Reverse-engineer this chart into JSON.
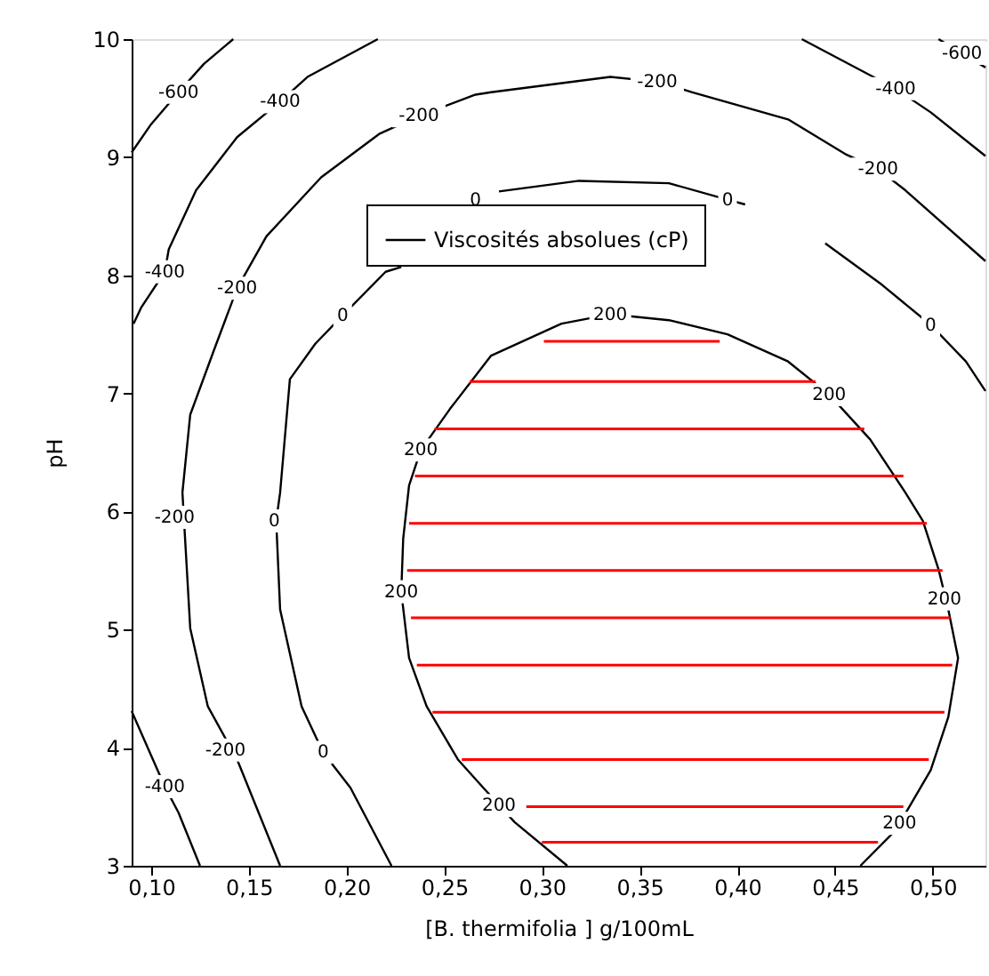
{
  "chart_data": {
    "type": "line",
    "xlabel": "[B. thermifolia ] g/100mL",
    "ylabel": "pH",
    "xlim": [
      0.09,
      0.527
    ],
    "ylim": [
      3,
      10
    ],
    "xticks": [
      {
        "value": 0.1,
        "label": "0,10"
      },
      {
        "value": 0.15,
        "label": "0,15"
      },
      {
        "value": 0.2,
        "label": "0,20"
      },
      {
        "value": 0.25,
        "label": "0,25"
      },
      {
        "value": 0.3,
        "label": "0,30"
      },
      {
        "value": 0.35,
        "label": "0,35"
      },
      {
        "value": 0.4,
        "label": "0,40"
      },
      {
        "value": 0.45,
        "label": "0,45"
      },
      {
        "value": 0.5,
        "label": "0,50"
      }
    ],
    "yticks": [
      3,
      4,
      5,
      6,
      7,
      8,
      9,
      10
    ],
    "grid": false,
    "legend": "top",
    "marker": "none",
    "line_style": "solid",
    "series": [
      {
        "name": "Viscosités absolues (cP)",
        "color": "#000000",
        "x": [
          0.09,
          0.1,
          0.114,
          0.127,
          0.142,
          null,
          0.503,
          0.515,
          0.527,
          null,
          0.216,
          0.18,
          0.166,
          0.144,
          0.123,
          0.109,
          0.107,
          0.095,
          0.091,
          null,
          0.433,
          0.481,
          0.499,
          0.527,
          null,
          0.09,
          0.107,
          0.114,
          0.125,
          null,
          0.166,
          0.144,
          0.129,
          0.12,
          0.116,
          0.12,
          0.132,
          0.144,
          0.159,
          0.187,
          0.217,
          0.237,
          0.266,
          0.274,
          0.335,
          0.359,
          0.377,
          0.426,
          0.456,
          0.472,
          0.486,
          0.527,
          null,
          0.223,
          0.202,
          0.188,
          0.177,
          0.166,
          0.164,
          0.166,
          0.171,
          0.184,
          0.198,
          0.22,
          0.228,
          null,
          0.278,
          0.319,
          0.365,
          0.395,
          0.404,
          null,
          0.445,
          0.474,
          0.499,
          0.517,
          0.527,
          null,
          0.313,
          0.286,
          0.27,
          0.257,
          0.241,
          0.232,
          0.228,
          0.229,
          0.232,
          0.238,
          0.253,
          0.274,
          0.31,
          0.335,
          0.365,
          0.395,
          0.426,
          0.447,
          0.468,
          0.486,
          0.495,
          0.503,
          0.508,
          0.513,
          0.508,
          0.499,
          0.481,
          0.463
        ],
        "values": [
          9.04,
          9.28,
          9.55,
          9.79,
          10,
          null,
          10,
          9.88,
          9.76,
          null,
          10,
          9.68,
          9.47,
          9.17,
          8.72,
          8.22,
          8.03,
          7.73,
          7.59,
          null,
          10,
          9.58,
          9.38,
          9.01,
          null,
          4.31,
          3.67,
          3.45,
          3,
          null,
          3,
          3.9,
          4.35,
          5.01,
          6.16,
          6.82,
          7.36,
          7.89,
          8.33,
          8.83,
          9.2,
          9.35,
          9.53,
          9.55,
          9.68,
          9.64,
          9.55,
          9.32,
          9.02,
          8.9,
          8.72,
          8.12,
          null,
          3,
          3.66,
          3.96,
          4.35,
          5.17,
          5.92,
          6.16,
          7.12,
          7.42,
          7.66,
          8.03,
          8.07,
          null,
          8.71,
          8.8,
          8.78,
          8.64,
          8.6,
          null,
          8.27,
          7.92,
          7.58,
          7.27,
          7.02,
          null,
          3,
          3.37,
          3.66,
          3.9,
          4.35,
          4.76,
          5.32,
          5.77,
          6.22,
          6.52,
          6.87,
          7.32,
          7.59,
          7.67,
          7.62,
          7.5,
          7.27,
          6.99,
          6.61,
          6.16,
          5.92,
          5.51,
          5.17,
          4.76,
          4.26,
          3.81,
          3.3,
          3
        ]
      },
      {
        "color": "#ff0000",
        "x": [
          0.301,
          0.391,
          null,
          0.263,
          0.44,
          null,
          0.245,
          0.465,
          null,
          0.235,
          0.485,
          null,
          0.232,
          0.497,
          null,
          0.231,
          0.505,
          null,
          0.233,
          0.509,
          null,
          0.236,
          0.51,
          null,
          0.244,
          0.506,
          null,
          0.259,
          0.498,
          null,
          0.292,
          0.485,
          null,
          0.3,
          0.472
        ],
        "values": [
          7.44,
          7.44,
          null,
          7.1,
          7.1,
          null,
          6.7,
          6.7,
          null,
          6.3,
          6.3,
          null,
          5.9,
          5.9,
          null,
          5.5,
          5.5,
          null,
          5.1,
          5.1,
          null,
          4.7,
          4.7,
          null,
          4.3,
          4.3,
          null,
          3.9,
          3.9,
          null,
          3.5,
          3.5,
          null,
          3.2,
          3.2
        ]
      }
    ],
    "annotations": [
      {
        "text": "-600",
        "x": 0.114,
        "y": 9.55
      },
      {
        "text": "-600",
        "x": 0.515,
        "y": 9.88
      },
      {
        "text": "-400",
        "x": 0.166,
        "y": 9.47
      },
      {
        "text": "-400",
        "x": 0.481,
        "y": 9.58
      },
      {
        "text": "-400",
        "x": 0.107,
        "y": 8.03
      },
      {
        "text": "-400",
        "x": 0.107,
        "y": 3.67
      },
      {
        "text": "-200",
        "x": 0.112,
        "y": 5.95
      },
      {
        "text": "-200",
        "x": 0.144,
        "y": 7.89
      },
      {
        "text": "-200",
        "x": 0.237,
        "y": 9.35
      },
      {
        "text": "-200",
        "x": 0.359,
        "y": 9.64
      },
      {
        "text": "-200",
        "x": 0.472,
        "y": 8.9
      },
      {
        "text": "-200",
        "x": 0.138,
        "y": 3.98
      },
      {
        "text": "0",
        "x": 0.188,
        "y": 3.96
      },
      {
        "text": "0",
        "x": 0.163,
        "y": 5.92
      },
      {
        "text": "0",
        "x": 0.198,
        "y": 7.66
      },
      {
        "text": "0",
        "x": 0.266,
        "y": 8.64
      },
      {
        "text": "0",
        "x": 0.395,
        "y": 8.64
      },
      {
        "text": "0",
        "x": 0.499,
        "y": 7.58
      },
      {
        "text": "200",
        "x": 0.238,
        "y": 6.52
      },
      {
        "text": "200",
        "x": 0.335,
        "y": 7.67
      },
      {
        "text": "200",
        "x": 0.447,
        "y": 6.99
      },
      {
        "text": "200",
        "x": 0.228,
        "y": 5.32
      },
      {
        "text": "200",
        "x": 0.506,
        "y": 5.26
      },
      {
        "text": "200",
        "x": 0.278,
        "y": 3.51
      },
      {
        "text": "200",
        "x": 0.483,
        "y": 3.36
      }
    ]
  }
}
